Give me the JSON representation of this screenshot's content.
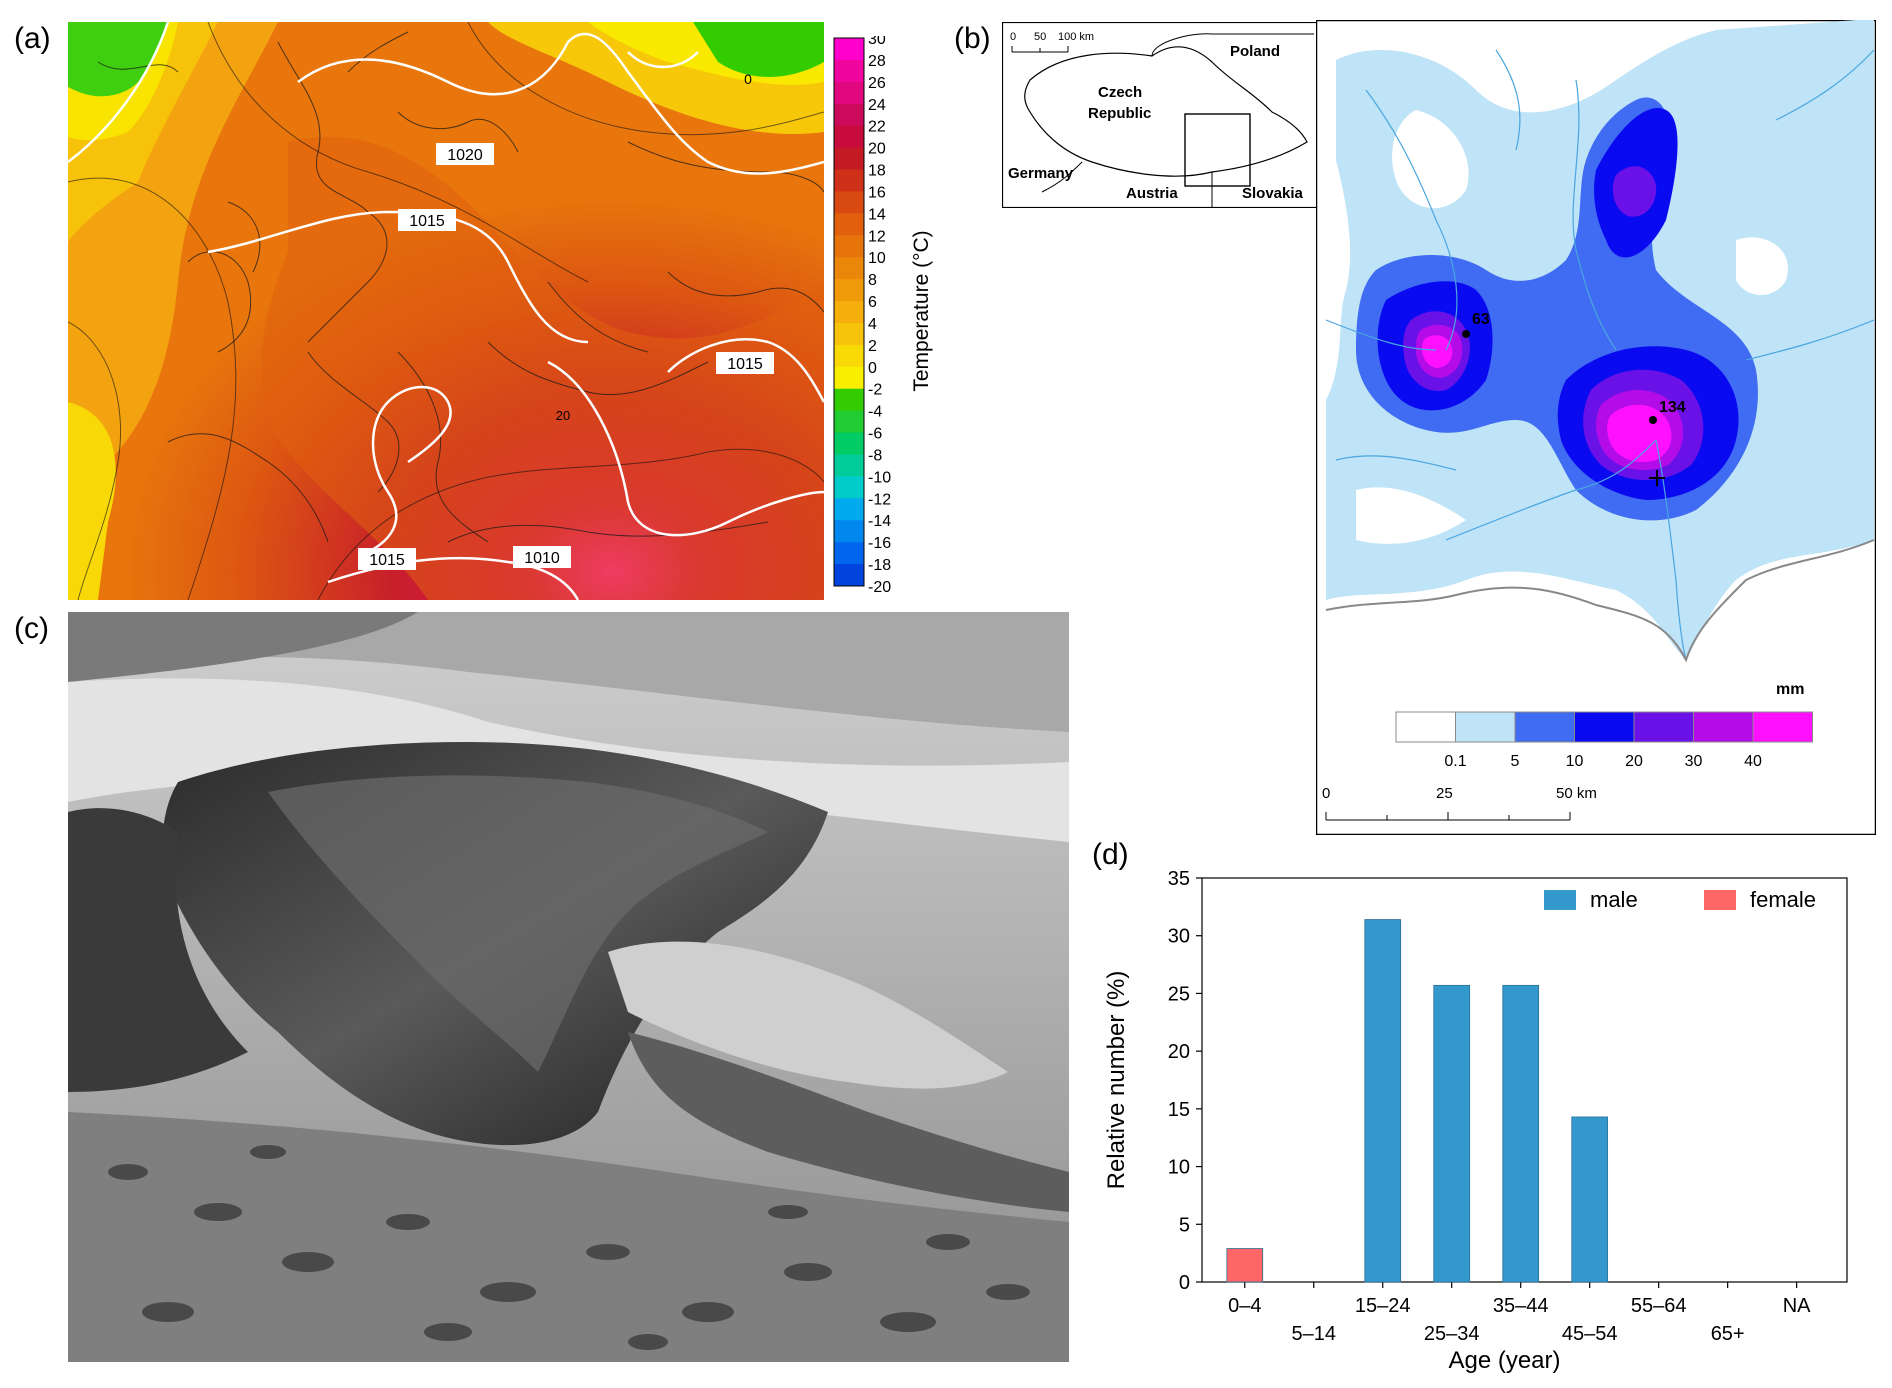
{
  "panels": {
    "a": {
      "letter": "(a)",
      "colorbar_title": "Temperature (°C)",
      "colorbar_ticks": [
        "30",
        "28",
        "26",
        "24",
        "22",
        "20",
        "18",
        "16",
        "14",
        "12",
        "10",
        "8",
        "6",
        "4",
        "2",
        "0",
        "-2",
        "-4",
        "-6",
        "-8",
        "-10",
        "-12",
        "-14",
        "-16",
        "-18",
        "-20"
      ],
      "colorbar_colors": [
        "#ff00cc",
        "#f0069f",
        "#e0077f",
        "#cc0a5c",
        "#c70c3d",
        "#c41a24",
        "#cf3118",
        "#d94a12",
        "#e15f0d",
        "#e6740a",
        "#eb8708",
        "#f09a0a",
        "#f5ae0c",
        "#f7c20a",
        "#f8d805",
        "#f9ee00",
        "#33cc00",
        "#22cc33",
        "#00cc66",
        "#00cc99",
        "#00cccc",
        "#00aaee",
        "#0088ee",
        "#0066ee",
        "#0044dd",
        "#0022cc"
      ],
      "isobar_labels": [
        "1020",
        "1015",
        "1015",
        "1015",
        "1010",
        "1010",
        "0",
        "20"
      ]
    },
    "b": {
      "letter": "(b)",
      "inset_labels": [
        "Poland",
        "Czech",
        "Republic",
        "Germany",
        "Austria",
        "Slovakia"
      ],
      "inset_scale": [
        "0",
        "50",
        "100 km"
      ],
      "point_labels": [
        "63",
        "134"
      ],
      "legend_unit": "mm",
      "legend_ticks": [
        "0.1",
        "5",
        "10",
        "20",
        "30",
        "40"
      ],
      "legend_colors": [
        "#ffffff",
        "#bfe3f7",
        "#3f6cf2",
        "#0a0af0",
        "#6a11e8",
        "#b30ce8",
        "#ff11ff"
      ],
      "scale_labels": [
        "0",
        "25",
        "50 km"
      ]
    },
    "c": {
      "letter": "(c)"
    },
    "d": {
      "letter": "(d)"
    }
  },
  "chart_data": {
    "type": "bar",
    "categories": [
      "0–4",
      "5–14",
      "15–24",
      "25–34",
      "35–44",
      "45–54",
      "55–64",
      "65+",
      "NA"
    ],
    "series": [
      {
        "name": "male",
        "color": "#3399cc",
        "values": [
          0,
          0,
          31.4,
          25.7,
          25.7,
          14.3,
          0,
          0,
          0
        ]
      },
      {
        "name": "female",
        "color": "#ff6666",
        "values": [
          2.9,
          0,
          0,
          0,
          0,
          0,
          0,
          0,
          0
        ]
      }
    ],
    "xlabel": "Age (year)",
    "ylabel": "Relative number (%)",
    "ylim": [
      0,
      35
    ],
    "yticks": [
      "0",
      "5",
      "10",
      "15",
      "20",
      "25",
      "30",
      "35"
    ],
    "legend": "top-right",
    "grid": false
  }
}
